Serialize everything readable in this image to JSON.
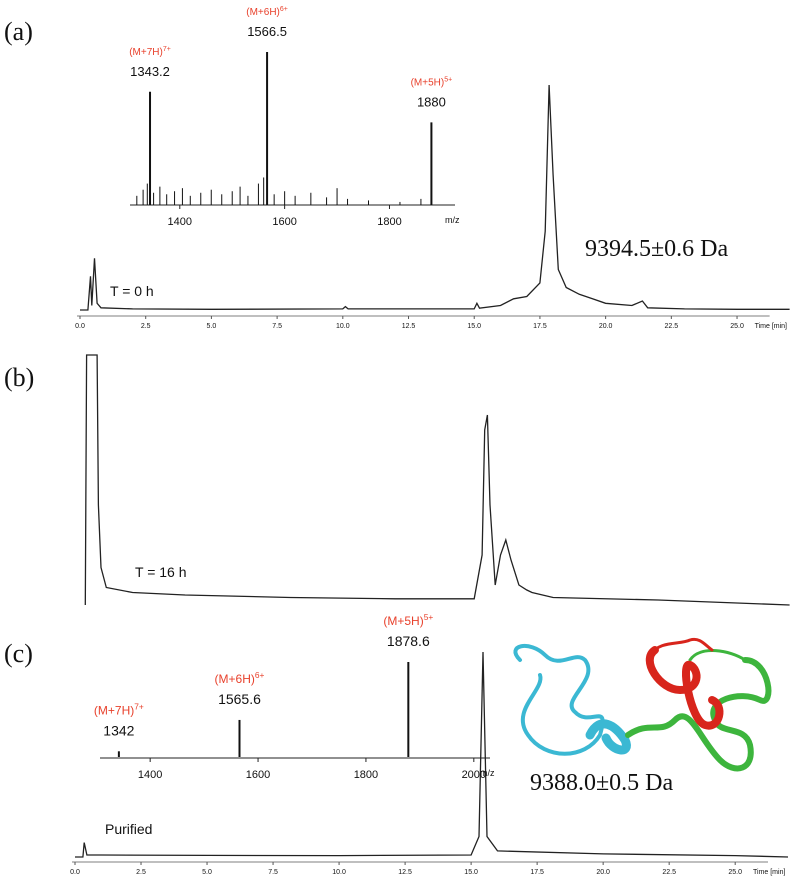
{
  "chart_data": [
    {
      "type": "line",
      "panel": "(a)",
      "annotation": "T = 0 h",
      "mass": "9394.5±0.6 Da",
      "xlabel": "Time [min]",
      "color": "#222222",
      "xlim": [
        0,
        27
      ],
      "ylim": [
        0,
        100
      ],
      "xticks": [
        {
          "value": 0,
          "label": "0.0"
        },
        2.5,
        {
          "value": 5,
          "label": "5.0"
        },
        7.5,
        {
          "value": 10,
          "label": "10.0"
        },
        12.5,
        {
          "value": 15,
          "label": "15.0"
        },
        17.5,
        {
          "value": 20,
          "label": "20.0"
        },
        22.5,
        {
          "value": 25,
          "label": "25.0"
        }
      ],
      "x": [
        0,
        0.3,
        0.4,
        0.45,
        0.55,
        0.65,
        0.8,
        2,
        5,
        10,
        10.1,
        10.2,
        15,
        15.1,
        15.2,
        16,
        16.5,
        17,
        17.5,
        17.7,
        17.85,
        18,
        18.2,
        18.5,
        19,
        19.5,
        20,
        21,
        21.4,
        21.6,
        23,
        25,
        27
      ],
      "values": [
        0,
        0,
        15,
        2,
        23,
        3,
        1,
        0.5,
        0.3,
        0.5,
        1.5,
        0.5,
        0.5,
        3,
        0.8,
        2,
        5,
        6,
        12,
        35,
        100,
        60,
        18,
        10,
        7,
        5,
        3,
        2,
        4,
        1,
        0.5,
        0.3,
        0.3
      ]
    },
    {
      "type": "stem",
      "xlabel": "m/z",
      "color": "#111111",
      "label_color": "#e8412c",
      "xlim": [
        1305,
        1925
      ],
      "ylim": [
        0,
        100
      ],
      "xticks": [
        1400,
        1600,
        1800
      ],
      "x": [
        1343.2,
        1566.5,
        1880.0
      ],
      "values": [
        74,
        100,
        54
      ],
      "ions": [
        "(M+7H)",
        "(M+6H)",
        "(M+5H)"
      ],
      "charges": [
        "7+",
        "6+",
        "5+"
      ],
      "noise": {
        "x": [
          1318,
          1330,
          1338,
          1350,
          1362,
          1375,
          1390,
          1405,
          1420,
          1440,
          1460,
          1480,
          1500,
          1515,
          1530,
          1550,
          1560,
          1580,
          1600,
          1620,
          1650,
          1680,
          1700,
          1720,
          1760,
          1820,
          1860
        ],
        "values": [
          6,
          10,
          14,
          8,
          12,
          7,
          9,
          11,
          6,
          8,
          10,
          7,
          9,
          12,
          6,
          14,
          18,
          7,
          9,
          6,
          8,
          5,
          11,
          4,
          3,
          2,
          4
        ]
      }
    },
    {
      "type": "line",
      "panel": "(b)",
      "annotation": "T = 16 h",
      "color": "#222222",
      "xlim": [
        0,
        27
      ],
      "ylim": [
        0,
        100
      ],
      "x": [
        0.2,
        0.25,
        0.65,
        0.7,
        0.8,
        1,
        2,
        4,
        8,
        12,
        15,
        15.3,
        15.4,
        15.5,
        15.6,
        15.8,
        16,
        16.2,
        16.4,
        16.7,
        17,
        17.2,
        18,
        22,
        27
      ],
      "values": [
        0,
        100,
        100,
        40,
        15,
        7,
        5,
        4,
        3,
        2.5,
        2.5,
        20,
        70,
        76,
        40,
        8,
        20,
        26,
        18,
        8,
        6,
        5,
        3,
        2,
        0
      ]
    },
    {
      "type": "line",
      "panel": "(c)",
      "annotation": "Purified",
      "mass": "9388.0±0.5 Da",
      "xlabel": "Time [min]",
      "color": "#222222",
      "xlim": [
        0,
        27
      ],
      "ylim": [
        0,
        100
      ],
      "xticks": [
        {
          "value": 0,
          "label": "0.0"
        },
        2.5,
        {
          "value": 5,
          "label": "5.0"
        },
        7.5,
        {
          "value": 10,
          "label": "10.0"
        },
        12.5,
        {
          "value": 15,
          "label": "15.0"
        },
        17.5,
        {
          "value": 20,
          "label": "20.0"
        },
        22.5,
        {
          "value": 25,
          "label": "25.0"
        }
      ],
      "x": [
        0,
        0.3,
        0.35,
        0.45,
        1,
        5,
        10,
        15,
        15.3,
        15.45,
        15.6,
        16,
        20,
        25,
        27
      ],
      "values": [
        0,
        0,
        7,
        1,
        1,
        0.8,
        0.7,
        1,
        10,
        100,
        10,
        3,
        1.5,
        0.7,
        0
      ]
    },
    {
      "type": "stem",
      "xlabel": "m/z",
      "color": "#111111",
      "label_color": "#e8412c",
      "xlim": [
        1307,
        2030
      ],
      "ylim": [
        0,
        100
      ],
      "xticks": [
        1400,
        1600,
        1800,
        2000
      ],
      "x": [
        1342.0,
        1565.6,
        1878.6
      ],
      "values": [
        6,
        39,
        100
      ],
      "ions": [
        "(M+7H)",
        "(M+6H)",
        "(M+5H)"
      ],
      "charges": [
        "7+",
        "6+",
        "5+"
      ]
    }
  ]
}
